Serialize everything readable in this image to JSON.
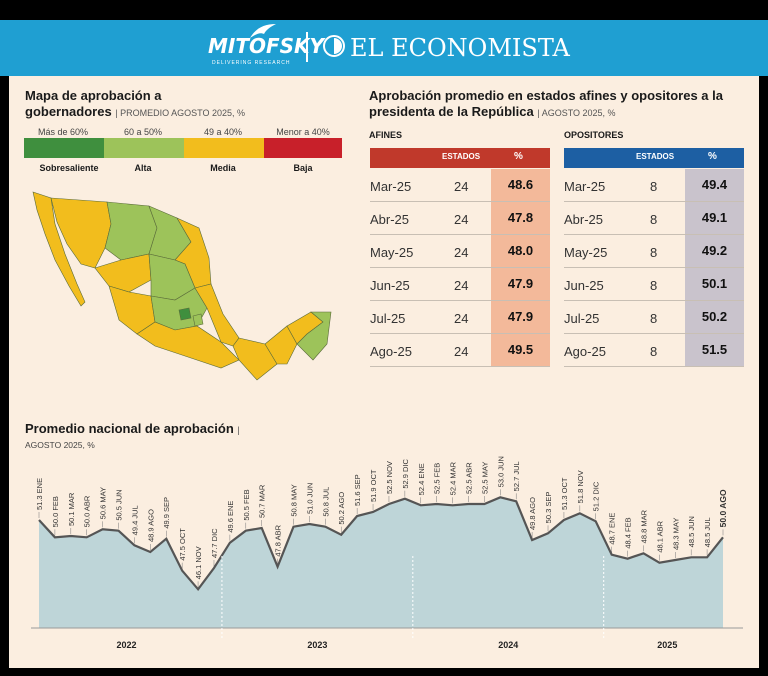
{
  "header": {
    "brand_left": "MITOFSKY",
    "brand_left_tagline": "DELIVERING RESEARCH",
    "brand_right": "EL ECONOMISTA"
  },
  "map_section": {
    "title_line1": "Mapa de aprobación a",
    "title_line2": "gobernadores",
    "subtitle": "PROMEDIO AGOSTO 2025, %",
    "legend": [
      {
        "range": "Más de 60%",
        "label": "Sobresaliente",
        "color": "#3f8f3e"
      },
      {
        "range": "60 a 50%",
        "label": "Alta",
        "color": "#9dc35a"
      },
      {
        "range": "49 a 40%",
        "label": "Media",
        "color": "#f2bd1d"
      },
      {
        "range": "Menor a 40%",
        "label": "Baja",
        "color": "#c8202a"
      }
    ]
  },
  "table_section": {
    "title_line1": "Aprobación promedio en estados afines y opositores a la",
    "title_line2": "presidenta de la República",
    "subtitle": "AGOSTO 2025, %",
    "afines": {
      "label": "AFINES",
      "col_estados": "ESTADOS",
      "col_pct": "%",
      "header_color": "#c0392b",
      "cell_color": "#f3b99a",
      "rows": [
        {
          "month": "Mar-25",
          "estados": "24",
          "pct": "48.6"
        },
        {
          "month": "Abr-25",
          "estados": "24",
          "pct": "47.8"
        },
        {
          "month": "May-25",
          "estados": "24",
          "pct": "48.0"
        },
        {
          "month": "Jun-25",
          "estados": "24",
          "pct": "47.9"
        },
        {
          "month": "Jul-25",
          "estados": "24",
          "pct": "47.9"
        },
        {
          "month": "Ago-25",
          "estados": "24",
          "pct": "49.5"
        }
      ]
    },
    "opositores": {
      "label": "OPOSITORES",
      "col_estados": "ESTADOS",
      "col_pct": "%",
      "header_color": "#1d5fa3",
      "cell_color": "#c9c3cc",
      "rows": [
        {
          "month": "Mar-25",
          "estados": "8",
          "pct": "49.4"
        },
        {
          "month": "Abr-25",
          "estados": "8",
          "pct": "49.1"
        },
        {
          "month": "May-25",
          "estados": "8",
          "pct": "49.2"
        },
        {
          "month": "Jun-25",
          "estados": "8",
          "pct": "50.1"
        },
        {
          "month": "Jul-25",
          "estados": "8",
          "pct": "50.2"
        },
        {
          "month": "Ago-25",
          "estados": "8",
          "pct": "51.5"
        }
      ]
    }
  },
  "line_section": {
    "title": "Promedio nacional de aprobación",
    "subtitle": "AGOSTO 2025, %"
  },
  "chart_data": {
    "type": "area",
    "title": "Promedio nacional de aprobación",
    "x": [
      "ENE",
      "FEB",
      "MAR",
      "ABR",
      "MAY",
      "JUN",
      "JUL",
      "AGO",
      "SEP",
      "OCT",
      "NOV",
      "DIC",
      "ENE",
      "FEB",
      "MAR",
      "ABR",
      "MAY",
      "JUN",
      "JUL",
      "AGO",
      "SEP",
      "OCT",
      "NOV",
      "DIC",
      "ENE",
      "FEB",
      "MAR",
      "ABR",
      "MAY",
      "JUN",
      "JUL",
      "AGO",
      "SEP",
      "OCT",
      "NOV",
      "DIC",
      "ENE",
      "FEB",
      "MAR",
      "ABR",
      "MAY",
      "JUN",
      "JUL",
      "AGO"
    ],
    "values": [
      51.3,
      50.0,
      50.1,
      50.0,
      50.6,
      50.5,
      49.4,
      48.9,
      49.9,
      47.5,
      46.1,
      47.7,
      49.6,
      50.5,
      50.7,
      47.8,
      50.8,
      51.0,
      50.8,
      50.2,
      51.6,
      51.9,
      52.5,
      52.9,
      52.4,
      52.5,
      52.4,
      52.5,
      52.5,
      53.0,
      52.7,
      49.8,
      50.3,
      51.3,
      51.8,
      51.2,
      48.7,
      48.4,
      48.8,
      48.1,
      48.3,
      48.5,
      48.5,
      50.0
    ],
    "point_labels": [
      "51.3 ENE",
      "50.0 FEB",
      "50.1 MAR",
      "50.0 ABR",
      "50.6 MAY",
      "50.5 JUN",
      "49.4 JUL",
      "48.9 AGO",
      "49.9 SEP",
      "47.5 OCT",
      "46.1 NOV",
      "47.7 DIC",
      "49.6 ENE",
      "50.5 FEB",
      "50.7 MAR",
      "47.8 ABR",
      "50.8 MAY",
      "51.0 JUN",
      "50.8 JUL",
      "50.2 AGO",
      "51.6 SEP",
      "51.9 OCT",
      "52.5 NOV",
      "52.9 DIC",
      "52.4 ENE",
      "52.5 FEB",
      "52.4 MAR",
      "52.5 ABR",
      "52.5 MAY",
      "53.0 JUN",
      "52.7 JUL",
      "49.8 AGO",
      "50.3 SEP",
      "51.3 OCT",
      "51.8 NOV",
      "51.2 DIC",
      "48.7 ENE",
      "48.4 FEB",
      "48.8 MAR",
      "48.1 ABR",
      "48.3 MAY",
      "48.5 JUN",
      "48.5 JUL",
      "50.0 AGO"
    ],
    "years": [
      "2022",
      "2023",
      "2024",
      "2025"
    ],
    "line_color": "#555555",
    "fill_color": "#a9ccd6"
  }
}
